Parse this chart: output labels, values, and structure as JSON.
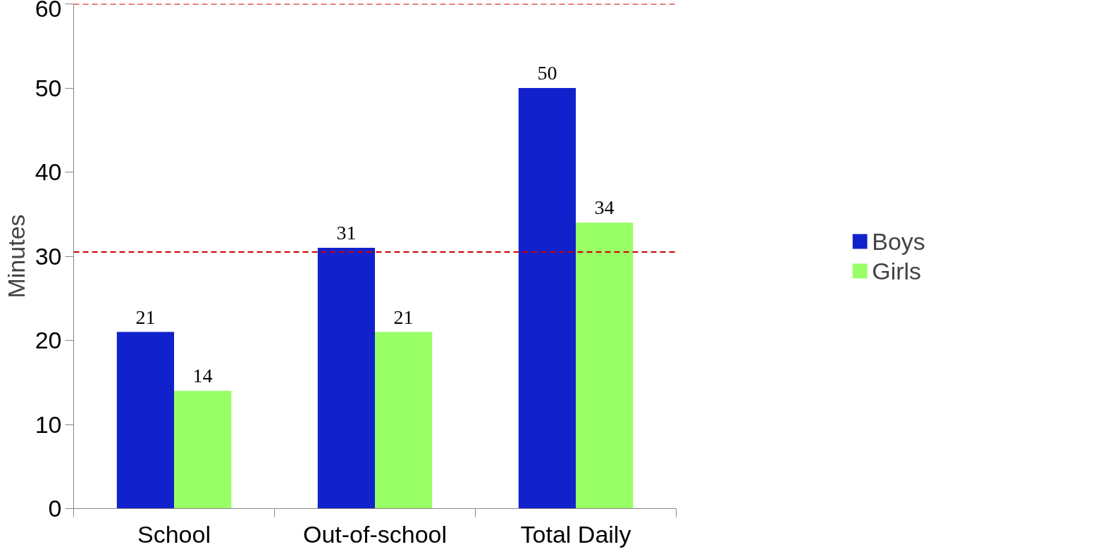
{
  "chart_data": {
    "type": "bar",
    "ylabel": "Minutes",
    "categories": [
      "School",
      "Out-of-school",
      "Total Daily"
    ],
    "series": [
      {
        "name": "Boys",
        "color": "#1122cc",
        "values": [
          21,
          31,
          50
        ]
      },
      {
        "name": "Girls",
        "color": "#99ff66",
        "values": [
          14,
          21,
          34
        ]
      }
    ],
    "ylim": [
      0,
      60
    ],
    "yticks": [
      0,
      10,
      20,
      30,
      40,
      50,
      60
    ],
    "ref_lines": [
      {
        "axis": "y",
        "value": 60,
        "color": "#cc0000",
        "line_style": "dashed"
      },
      {
        "axis": "y",
        "value": 30.5,
        "color": "#cc0000",
        "line_style": "dashed"
      }
    ],
    "data_labels": true,
    "legend": "right",
    "grid": false
  }
}
